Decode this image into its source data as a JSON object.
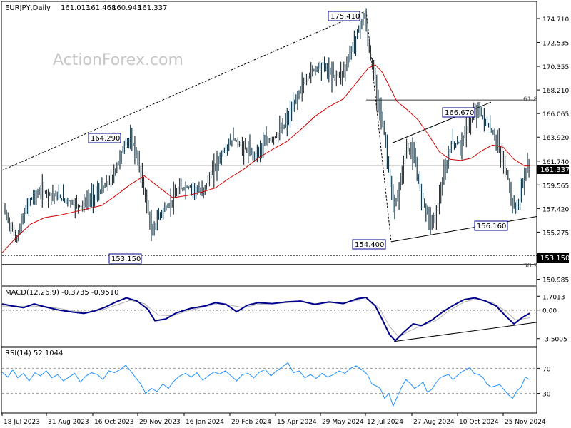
{
  "chart_data": [
    {
      "type": "candlestick",
      "title": "EURJPY,Daily",
      "ohlc_readout": [
        "161.013",
        "161.468",
        "160.943",
        "161.337"
      ],
      "watermark": "ActionForex.com",
      "y_ticks": [
        "174.710",
        "172.535",
        "170.355",
        "168.210",
        "166.065",
        "163.920",
        "161.740",
        "159.565",
        "157.420",
        "155.275",
        "153.150",
        "150.985"
      ],
      "ylim": [
        150.5,
        176.2
      ],
      "current_price": "161.337",
      "ma_label_tag": "153.150",
      "levels": {
        "fib_61_8": {
          "label": "61.8",
          "price": 167.3
        },
        "fib_38_2": {
          "label": "38.2",
          "price": 152.35
        },
        "support": {
          "price": 153.15
        }
      },
      "annotations": [
        "175.410",
        "164.290",
        "166.670",
        "153.150",
        "154.400",
        "156.160"
      ],
      "close_path": [
        [
          0,
          157.6
        ],
        [
          10,
          156.1
        ],
        [
          20,
          154.6
        ],
        [
          30,
          156.8
        ],
        [
          40,
          158.3
        ],
        [
          55,
          159.0
        ],
        [
          70,
          158.7
        ],
        [
          90,
          158.2
        ],
        [
          110,
          157.6
        ],
        [
          125,
          158.4
        ],
        [
          140,
          159.1
        ],
        [
          155,
          160.2
        ],
        [
          165,
          162.0
        ],
        [
          175,
          163.7
        ],
        [
          185,
          163.2
        ],
        [
          195,
          160.6
        ],
        [
          205,
          157.2
        ],
        [
          210,
          155.0
        ],
        [
          220,
          156.8
        ],
        [
          235,
          157.8
        ],
        [
          250,
          159.2
        ],
        [
          265,
          159.4
        ],
        [
          280,
          158.8
        ],
        [
          295,
          160.7
        ],
        [
          310,
          162.5
        ],
        [
          325,
          163.8
        ],
        [
          340,
          162.9
        ],
        [
          355,
          162.3
        ],
        [
          370,
          163.4
        ],
        [
          385,
          164.0
        ],
        [
          395,
          164.8
        ],
        [
          405,
          166.0
        ],
        [
          420,
          168.4
        ],
        [
          435,
          169.9
        ],
        [
          450,
          170.6
        ],
        [
          465,
          169.5
        ],
        [
          480,
          169.8
        ],
        [
          495,
          172.6
        ],
        [
          505,
          174.4
        ],
        [
          510,
          175.0
        ],
        [
          515,
          172.4
        ],
        [
          520,
          170.4
        ],
        [
          530,
          167.0
        ],
        [
          538,
          164.0
        ],
        [
          545,
          160.2
        ],
        [
          550,
          157.2
        ],
        [
          558,
          159.0
        ],
        [
          568,
          163.0
        ],
        [
          578,
          162.3
        ],
        [
          588,
          159.2
        ],
        [
          598,
          157.0
        ],
        [
          606,
          156.0
        ],
        [
          612,
          157.6
        ],
        [
          622,
          160.5
        ],
        [
          632,
          163.4
        ],
        [
          645,
          163.3
        ],
        [
          655,
          164.8
        ],
        [
          668,
          166.6
        ],
        [
          675,
          165.8
        ],
        [
          685,
          164.8
        ],
        [
          695,
          163.7
        ],
        [
          705,
          161.6
        ],
        [
          712,
          160.0
        ],
        [
          718,
          157.4
        ],
        [
          725,
          157.8
        ],
        [
          732,
          159.8
        ],
        [
          740,
          161.4
        ]
      ],
      "ma_path": [
        [
          0,
          153.4
        ],
        [
          20,
          154.8
        ],
        [
          40,
          156.0
        ],
        [
          60,
          156.6
        ],
        [
          80,
          156.8
        ],
        [
          100,
          157.1
        ],
        [
          120,
          157.4
        ],
        [
          140,
          157.7
        ],
        [
          160,
          158.6
        ],
        [
          180,
          159.6
        ],
        [
          200,
          160.4
        ],
        [
          220,
          159.4
        ],
        [
          240,
          158.4
        ],
        [
          260,
          158.6
        ],
        [
          280,
          158.9
        ],
        [
          300,
          159.3
        ],
        [
          320,
          160.2
        ],
        [
          340,
          161.0
        ],
        [
          360,
          162.0
        ],
        [
          380,
          162.8
        ],
        [
          400,
          163.5
        ],
        [
          420,
          164.6
        ],
        [
          440,
          165.8
        ],
        [
          460,
          166.7
        ],
        [
          480,
          167.4
        ],
        [
          500,
          169.0
        ],
        [
          515,
          170.2
        ],
        [
          525,
          170.5
        ],
        [
          535,
          169.8
        ],
        [
          545,
          168.5
        ],
        [
          555,
          167.2
        ],
        [
          570,
          166.4
        ],
        [
          585,
          165.5
        ],
        [
          600,
          164.1
        ],
        [
          615,
          162.6
        ],
        [
          630,
          161.9
        ],
        [
          645,
          161.8
        ],
        [
          660,
          162.0
        ],
        [
          675,
          162.7
        ],
        [
          690,
          163.2
        ],
        [
          705,
          163.0
        ],
        [
          720,
          161.9
        ],
        [
          735,
          161.3
        ],
        [
          742,
          161.3
        ]
      ],
      "x_ticks": [
        "18 Jul 2023",
        "31 Aug 2023",
        "16 Oct 2023",
        "29 Nov 2023",
        "16 Jan 2024",
        "29 Feb 2024",
        "15 Apr 2024",
        "29 May 2024",
        "12 Jul 2024",
        "27 Aug 2024",
        "10 Oct 2024",
        "25 Nov 2024"
      ]
    },
    {
      "type": "line",
      "title": "MACD(12,26,9) -0.3735 -0.9510",
      "y_ticks": [
        "1.7013",
        "0.00",
        "-3.5005"
      ],
      "ylim": [
        -4.4,
        2.6
      ],
      "macd_path": [
        [
          0,
          0.75
        ],
        [
          15,
          0.5
        ],
        [
          30,
          0.3
        ],
        [
          45,
          0.75
        ],
        [
          60,
          0.4
        ],
        [
          80,
          0.0
        ],
        [
          100,
          -0.25
        ],
        [
          115,
          -0.4
        ],
        [
          130,
          -0.1
        ],
        [
          145,
          0.35
        ],
        [
          160,
          1.0
        ],
        [
          175,
          1.5
        ],
        [
          190,
          1.1
        ],
        [
          205,
          0.1
        ],
        [
          215,
          -1.3
        ],
        [
          230,
          -1.1
        ],
        [
          245,
          -0.35
        ],
        [
          265,
          0.2
        ],
        [
          285,
          0.5
        ],
        [
          300,
          0.9
        ],
        [
          315,
          0.7
        ],
        [
          330,
          -0.2
        ],
        [
          345,
          0.6
        ],
        [
          360,
          0.9
        ],
        [
          380,
          0.8
        ],
        [
          400,
          1.0
        ],
        [
          420,
          1.1
        ],
        [
          440,
          0.7
        ],
        [
          460,
          1.0
        ],
        [
          480,
          0.8
        ],
        [
          500,
          1.4
        ],
        [
          512,
          1.55
        ],
        [
          525,
          0.5
        ],
        [
          535,
          -1.2
        ],
        [
          545,
          -3.0
        ],
        [
          553,
          -3.75
        ],
        [
          565,
          -2.7
        ],
        [
          578,
          -1.7
        ],
        [
          590,
          -1.9
        ],
        [
          605,
          -1.2
        ],
        [
          620,
          -0.2
        ],
        [
          635,
          0.6
        ],
        [
          650,
          1.3
        ],
        [
          665,
          1.5
        ],
        [
          680,
          1.1
        ],
        [
          695,
          0.5
        ],
        [
          708,
          -0.7
        ],
        [
          720,
          -1.7
        ],
        [
          732,
          -0.9
        ],
        [
          742,
          -0.4
        ]
      ],
      "signal_path": [
        [
          0,
          0.5
        ],
        [
          20,
          0.45
        ],
        [
          40,
          0.5
        ],
        [
          60,
          0.45
        ],
        [
          80,
          0.2
        ],
        [
          100,
          -0.1
        ],
        [
          120,
          -0.3
        ],
        [
          140,
          0.0
        ],
        [
          160,
          0.6
        ],
        [
          180,
          1.2
        ],
        [
          200,
          0.8
        ],
        [
          220,
          -0.6
        ],
        [
          240,
          -0.7
        ],
        [
          260,
          -0.1
        ],
        [
          280,
          0.3
        ],
        [
          300,
          0.7
        ],
        [
          320,
          0.6
        ],
        [
          340,
          0.3
        ],
        [
          360,
          0.7
        ],
        [
          380,
          0.8
        ],
        [
          400,
          0.9
        ],
        [
          420,
          1.0
        ],
        [
          440,
          0.8
        ],
        [
          460,
          0.9
        ],
        [
          480,
          0.9
        ],
        [
          500,
          1.2
        ],
        [
          515,
          1.3
        ],
        [
          530,
          0.3
        ],
        [
          545,
          -2.0
        ],
        [
          558,
          -3.3
        ],
        [
          572,
          -2.6
        ],
        [
          590,
          -1.9
        ],
        [
          610,
          -1.3
        ],
        [
          630,
          0.0
        ],
        [
          650,
          1.0
        ],
        [
          670,
          1.4
        ],
        [
          690,
          0.9
        ],
        [
          708,
          -0.1
        ],
        [
          722,
          -1.2
        ],
        [
          742,
          -0.95
        ]
      ],
      "trendline": [
        [
          552,
          -3.85
        ],
        [
          752,
          -1.5
        ]
      ]
    },
    {
      "type": "line",
      "title": "RSI(14) 52.1044",
      "y_ticks": [
        "70",
        "30"
      ],
      "ylim": [
        0,
        100
      ],
      "rsi_path": [
        [
          0,
          64
        ],
        [
          8,
          56
        ],
        [
          15,
          68
        ],
        [
          22,
          55
        ],
        [
          30,
          62
        ],
        [
          38,
          50
        ],
        [
          46,
          63
        ],
        [
          54,
          58
        ],
        [
          62,
          66
        ],
        [
          70,
          55
        ],
        [
          78,
          60
        ],
        [
          86,
          50
        ],
        [
          94,
          56
        ],
        [
          102,
          62
        ],
        [
          110,
          48
        ],
        [
          118,
          58
        ],
        [
          126,
          63
        ],
        [
          134,
          60
        ],
        [
          142,
          52
        ],
        [
          150,
          66
        ],
        [
          158,
          63
        ],
        [
          166,
          68
        ],
        [
          174,
          75
        ],
        [
          180,
          67
        ],
        [
          188,
          55
        ],
        [
          195,
          45
        ],
        [
          202,
          30
        ],
        [
          210,
          38
        ],
        [
          218,
          33
        ],
        [
          226,
          45
        ],
        [
          234,
          38
        ],
        [
          242,
          50
        ],
        [
          250,
          58
        ],
        [
          258,
          62
        ],
        [
          266,
          56
        ],
        [
          274,
          63
        ],
        [
          282,
          51
        ],
        [
          290,
          58
        ],
        [
          298,
          64
        ],
        [
          306,
          61
        ],
        [
          314,
          66
        ],
        [
          322,
          58
        ],
        [
          330,
          50
        ],
        [
          338,
          60
        ],
        [
          346,
          62
        ],
        [
          354,
          55
        ],
        [
          362,
          64
        ],
        [
          370,
          68
        ],
        [
          378,
          58
        ],
        [
          386,
          66
        ],
        [
          394,
          72
        ],
        [
          402,
          79
        ],
        [
          410,
          63
        ],
        [
          418,
          66
        ],
        [
          426,
          55
        ],
        [
          434,
          60
        ],
        [
          442,
          54
        ],
        [
          450,
          62
        ],
        [
          458,
          56
        ],
        [
          466,
          60
        ],
        [
          474,
          66
        ],
        [
          482,
          62
        ],
        [
          490,
          70
        ],
        [
          498,
          74
        ],
        [
          506,
          68
        ],
        [
          514,
          60
        ],
        [
          520,
          45
        ],
        [
          526,
          42
        ],
        [
          532,
          38
        ],
        [
          538,
          22
        ],
        [
          544,
          30
        ],
        [
          550,
          10
        ],
        [
          556,
          25
        ],
        [
          562,
          40
        ],
        [
          568,
          52
        ],
        [
          574,
          46
        ],
        [
          580,
          38
        ],
        [
          586,
          42
        ],
        [
          592,
          48
        ],
        [
          598,
          32
        ],
        [
          604,
          36
        ],
        [
          610,
          46
        ],
        [
          616,
          55
        ],
        [
          622,
          58
        ],
        [
          628,
          60
        ],
        [
          634,
          52
        ],
        [
          640,
          58
        ],
        [
          646,
          64
        ],
        [
          652,
          68
        ],
        [
          658,
          71
        ],
        [
          664,
          62
        ],
        [
          670,
          60
        ],
        [
          676,
          56
        ],
        [
          682,
          45
        ],
        [
          688,
          40
        ],
        [
          694,
          42
        ],
        [
          700,
          44
        ],
        [
          706,
          36
        ],
        [
          712,
          28
        ],
        [
          718,
          22
        ],
        [
          724,
          34
        ],
        [
          730,
          40
        ],
        [
          736,
          56
        ],
        [
          742,
          52
        ]
      ],
      "x_ticks": [
        "18 Jul 2023",
        "31 Aug 2023",
        "16 Oct 2023",
        "29 Nov 2023",
        "16 Jan 2024",
        "29 Feb 2024",
        "15 Apr 2024",
        "29 May 2024",
        "12 Jul 2024",
        "27 Aug 2024",
        "10 Oct 2024",
        "25 Nov 2024"
      ]
    }
  ]
}
